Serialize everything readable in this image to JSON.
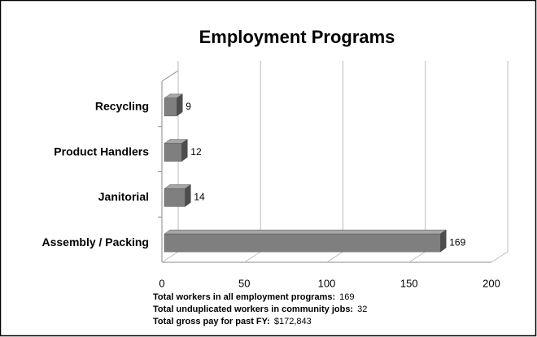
{
  "chart_data": {
    "type": "hbar",
    "title": "Employment Programs",
    "categories": [
      "Recycling",
      "Product Handlers",
      "Janitorial",
      "Assembly / Packing"
    ],
    "values": [
      9,
      12,
      14,
      169
    ],
    "color": "#7f7f7f",
    "xlim": [
      0,
      200
    ],
    "xticks": [
      0,
      50,
      100,
      150,
      200
    ],
    "grid": true,
    "annotations": [
      {
        "label": "Total workers in all employment programs:",
        "value": "169"
      },
      {
        "label": "Total unduplicated workers in community jobs:",
        "value": "32"
      },
      {
        "label": "Total gross pay for past FY:",
        "value": "$172,843"
      }
    ]
  }
}
